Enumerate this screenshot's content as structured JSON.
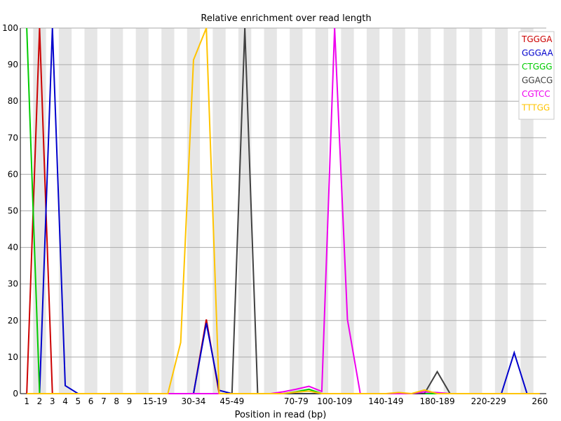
{
  "chart_data": {
    "type": "line",
    "title": "Relative enrichment over read length",
    "xlabel": "Position in read (bp)",
    "ylabel": "",
    "ylim": [
      0,
      100
    ],
    "yticks": [
      0,
      10,
      20,
      30,
      40,
      50,
      60,
      70,
      80,
      90,
      100
    ],
    "categories": [
      "1",
      "2",
      "3",
      "4",
      "5",
      "6",
      "7",
      "8",
      "9",
      "10-14",
      "15-19",
      "20-24",
      "25-29",
      "30-34",
      "35-39",
      "40-44",
      "45-49",
      "50-54",
      "55-59",
      "60-64",
      "65-69",
      "70-79",
      "80-89",
      "90-99",
      "100-109",
      "110-119",
      "120-129",
      "130-139",
      "140-149",
      "150-159",
      "160-169",
      "170-179",
      "180-189",
      "190-199",
      "200-209",
      "210-219",
      "220-229",
      "230-239",
      "240-249",
      "250-259",
      "260"
    ],
    "xtick_labels": [
      "1",
      "2",
      "3",
      "4",
      "5",
      "6",
      "7",
      "8",
      "9",
      "15-19",
      "30-34",
      "45-49",
      "70-79",
      "100-109",
      "140-149",
      "180-189",
      "220-229",
      "260"
    ],
    "series": [
      {
        "name": "TGGGA",
        "color": "#cc0000",
        "values": [
          0,
          100,
          0,
          0,
          0,
          0,
          0,
          0,
          0,
          0,
          0,
          0,
          0,
          0,
          20.3,
          0,
          0,
          0,
          0,
          0,
          0,
          0,
          0,
          0,
          0,
          0,
          0,
          0,
          0,
          0,
          0,
          0,
          0,
          0,
          0,
          0,
          0,
          0,
          0,
          0,
          0
        ]
      },
      {
        "name": "GGGAA",
        "color": "#0000cc",
        "values": [
          0,
          0,
          100,
          2.2,
          0,
          0,
          0,
          0,
          0,
          0,
          0,
          0,
          0,
          0,
          19.3,
          0.9,
          0,
          0,
          0,
          0,
          0,
          0,
          0,
          0,
          0,
          0,
          0,
          0,
          0,
          0,
          0,
          0,
          0,
          0,
          0,
          0,
          0,
          0,
          11.2,
          0,
          0
        ]
      },
      {
        "name": "CTGGG",
        "color": "#00cc00",
        "values": [
          100,
          0,
          0,
          0,
          0,
          0,
          0,
          0,
          0,
          0,
          0,
          0,
          0,
          0,
          0,
          0,
          0,
          0,
          0,
          0,
          0,
          0.5,
          1.2,
          0,
          0,
          0,
          0,
          0,
          0,
          0,
          0,
          0,
          0,
          0,
          0,
          0,
          0,
          0,
          0,
          0,
          0
        ]
      },
      {
        "name": "GGACG",
        "color": "#404040",
        "values": [
          0,
          0,
          0,
          0,
          0,
          0,
          0,
          0,
          0,
          0,
          0,
          0,
          0,
          0,
          0,
          0,
          0,
          100,
          0,
          0,
          0,
          0,
          0,
          0,
          0,
          0,
          0,
          0,
          0,
          0,
          0,
          0,
          6,
          0,
          0,
          0,
          0,
          0,
          0,
          0,
          0
        ]
      },
      {
        "name": "CGTCC",
        "color": "#ee00ee",
        "values": [
          0,
          0,
          0,
          0,
          0,
          0,
          0,
          0,
          0,
          0,
          0,
          0,
          0,
          0,
          0,
          0,
          0,
          0,
          0,
          0,
          0.5,
          1.2,
          2,
          0.6,
          100,
          20.3,
          0,
          0,
          0,
          0,
          0,
          0.5,
          0.3,
          0,
          0,
          0,
          0,
          0,
          0,
          0,
          0
        ]
      },
      {
        "name": "TTTGG",
        "color": "#ffc400",
        "values": [
          0,
          0,
          0,
          0,
          0,
          0,
          0,
          0,
          0,
          0,
          0,
          0,
          14,
          91.3,
          100,
          0,
          0,
          0,
          0,
          0,
          0,
          0.4,
          0.7,
          0,
          0,
          0,
          0,
          0,
          0,
          0.3,
          0,
          1,
          0,
          0,
          0,
          0,
          0,
          0,
          0,
          0,
          0
        ]
      }
    ],
    "grid": true,
    "legend": "top-right",
    "colors": {
      "band": "#e6e6e6",
      "grid": "#aaaaaa",
      "axis": "#000000"
    }
  }
}
